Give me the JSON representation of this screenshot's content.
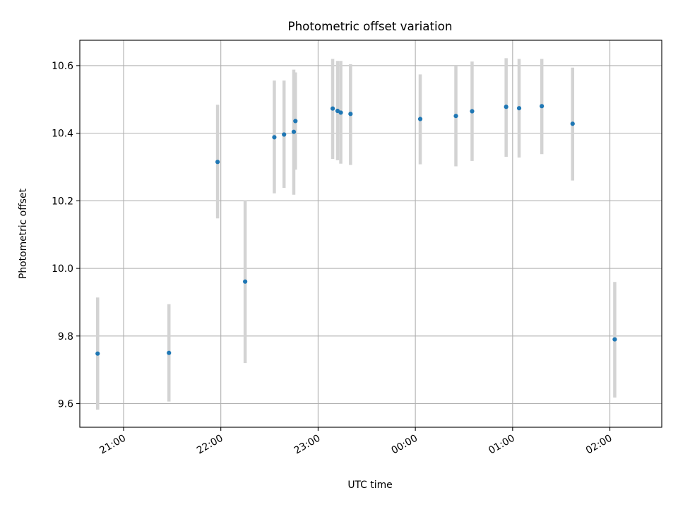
{
  "chart_data": {
    "type": "scatter",
    "title": "Photometric offset variation",
    "xlabel": "UTC time",
    "ylabel": "Photometric offset",
    "x_axis": {
      "kind": "time",
      "xlim": [
        "20:33",
        "02:32"
      ],
      "ticks": [
        "21:00",
        "22:00",
        "23:00",
        "00:00",
        "01:00",
        "02:00"
      ]
    },
    "y_axis": {
      "ylim": [
        9.53,
        10.675
      ],
      "ticks": [
        "9.6",
        "9.8",
        "10.0",
        "10.2",
        "10.4",
        "10.6"
      ]
    },
    "grid": true,
    "colors": {
      "point": "#1f77b4",
      "errorbar": "#d3d3d3",
      "grid": "#b0b0b0"
    },
    "points": [
      {
        "x": "20:44",
        "y": 9.748,
        "yerr_low": 9.582,
        "yerr_high": 9.914
      },
      {
        "x": "21:28",
        "y": 9.75,
        "yerr_low": 9.606,
        "yerr_high": 9.894
      },
      {
        "x": "21:58",
        "y": 10.315,
        "yerr_low": 10.148,
        "yerr_high": 10.484
      },
      {
        "x": "22:15",
        "y": 9.961,
        "yerr_low": 9.72,
        "yerr_high": 10.202
      },
      {
        "x": "22:33",
        "y": 10.388,
        "yerr_low": 10.222,
        "yerr_high": 10.556
      },
      {
        "x": "22:39",
        "y": 10.396,
        "yerr_low": 10.238,
        "yerr_high": 10.556
      },
      {
        "x": "22:45",
        "y": 10.404,
        "yerr_low": 10.218,
        "yerr_high": 10.588
      },
      {
        "x": "22:46",
        "y": 10.436,
        "yerr_low": 10.292,
        "yerr_high": 10.58
      },
      {
        "x": "23:09",
        "y": 10.473,
        "yerr_low": 10.324,
        "yerr_high": 10.62
      },
      {
        "x": "23:12",
        "y": 10.466,
        "yerr_low": 10.32,
        "yerr_high": 10.614
      },
      {
        "x": "23:14",
        "y": 10.461,
        "yerr_low": 10.31,
        "yerr_high": 10.614
      },
      {
        "x": "23:20",
        "y": 10.457,
        "yerr_low": 10.306,
        "yerr_high": 10.604
      },
      {
        "x": "00:03",
        "y": 10.442,
        "yerr_low": 10.308,
        "yerr_high": 10.574
      },
      {
        "x": "00:25",
        "y": 10.451,
        "yerr_low": 10.302,
        "yerr_high": 10.598
      },
      {
        "x": "00:35",
        "y": 10.465,
        "yerr_low": 10.318,
        "yerr_high": 10.612
      },
      {
        "x": "00:56",
        "y": 10.478,
        "yerr_low": 10.33,
        "yerr_high": 10.622
      },
      {
        "x": "01:04",
        "y": 10.474,
        "yerr_low": 10.328,
        "yerr_high": 10.62
      },
      {
        "x": "01:18",
        "y": 10.48,
        "yerr_low": 10.338,
        "yerr_high": 10.62
      },
      {
        "x": "01:37",
        "y": 10.428,
        "yerr_low": 10.26,
        "yerr_high": 10.594
      },
      {
        "x": "02:03",
        "y": 9.79,
        "yerr_low": 9.618,
        "yerr_high": 9.96
      }
    ]
  }
}
